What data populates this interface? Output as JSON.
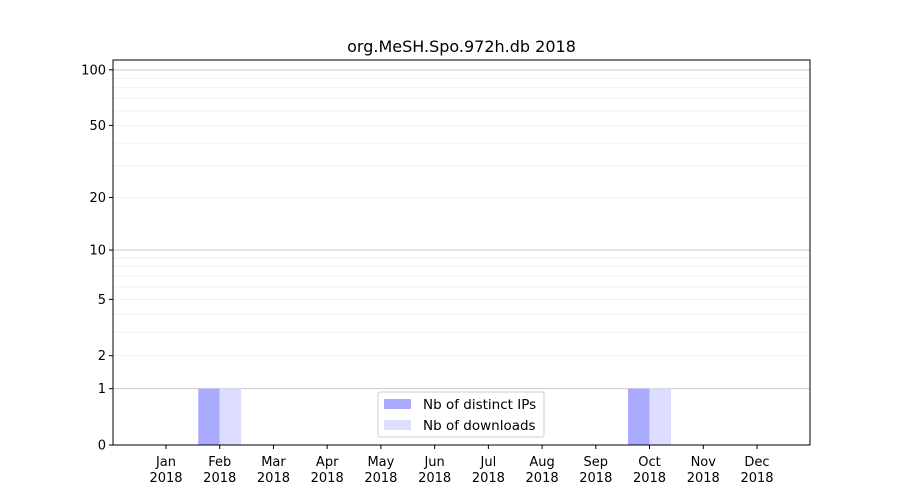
{
  "chart_data": {
    "type": "bar",
    "title": "org.MeSH.Spo.972h.db 2018",
    "xlabel": "",
    "ylabel": "",
    "yscale": "log(1+y)",
    "ylim": [
      0,
      113
    ],
    "yticks": [
      0,
      1,
      2,
      5,
      10,
      20,
      50,
      100
    ],
    "grid": true,
    "legend_position": "bottom-center",
    "categories": [
      "Jan\n2018",
      "Feb\n2018",
      "Mar\n2018",
      "Apr\n2018",
      "May\n2018",
      "Jun\n2018",
      "Jul\n2018",
      "Aug\n2018",
      "Sep\n2018",
      "Oct\n2018",
      "Nov\n2018",
      "Dec\n2018"
    ],
    "series": [
      {
        "name": "Nb of distinct IPs",
        "color": "#aaaaff",
        "values": [
          0,
          1,
          0,
          0,
          0,
          0,
          0,
          0,
          0,
          1,
          0,
          0
        ]
      },
      {
        "name": "Nb of downloads",
        "color": "#ddddff",
        "values": [
          0,
          1,
          0,
          0,
          0,
          0,
          0,
          0,
          0,
          1,
          0,
          0
        ]
      }
    ]
  }
}
